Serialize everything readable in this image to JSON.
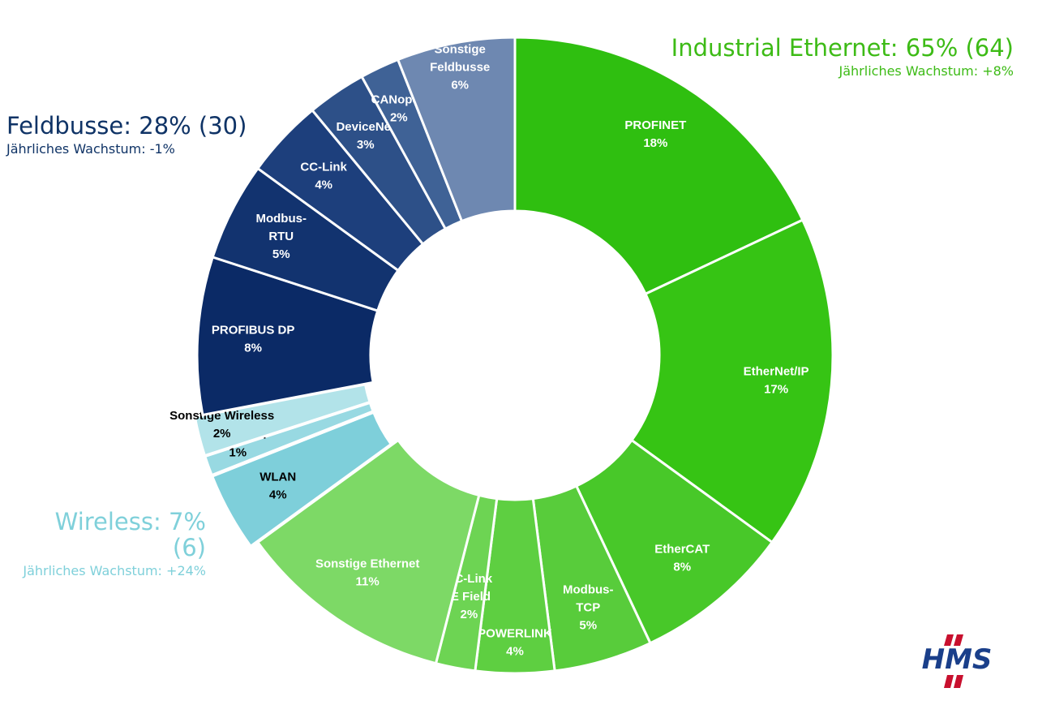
{
  "groups": {
    "industrial_ethernet": {
      "title": "Industrial Ethernet: 65% (64)",
      "growth": "Jährliches Wachstum: +8%",
      "color": "#3dbb16"
    },
    "feldbusse": {
      "title": "Feldbusse: 28% (30)",
      "growth": "Jährliches Wachstum: -1%",
      "color": "#0f3366"
    },
    "wireless": {
      "title": "Wireless: 7% (6)",
      "growth": "Jährliches Wachstum: +24%",
      "color": "#7fd0da"
    }
  },
  "logo": {
    "text": "HMS",
    "color": "#1a3f8a",
    "accent": "#c8102e"
  },
  "chart_data": {
    "type": "pie",
    "variant": "donut",
    "title": "",
    "direction": "clockwise from top",
    "slices": [
      {
        "label": "PROFINET",
        "value": 18,
        "display": "18%",
        "group": "Industrial Ethernet",
        "color": "#2fbf10",
        "text_color": "#ffffff"
      },
      {
        "label": "EtherNet/IP",
        "value": 17,
        "display": "17%",
        "group": "Industrial Ethernet",
        "color": "#36c414",
        "text_color": "#ffffff"
      },
      {
        "label": "EtherCAT",
        "value": 8,
        "display": "8%",
        "group": "Industrial Ethernet",
        "color": "#48c829",
        "text_color": "#ffffff"
      },
      {
        "label": "Modbus-TCP",
        "value": 5,
        "display": "5%",
        "group": "Industrial Ethernet",
        "color": "#58cc3b",
        "text_color": "#ffffff"
      },
      {
        "label": "POWERLINK",
        "value": 4,
        "display": "4%",
        "group": "Industrial Ethernet",
        "color": "#5ecf41",
        "text_color": "#ffffff"
      },
      {
        "label": "CC-Link IE Field",
        "value": 2,
        "display": "2%",
        "group": "Industrial Ethernet",
        "color": "#6dd453",
        "text_color": "#ffffff"
      },
      {
        "label": "Sonstige Ethernet",
        "value": 11,
        "display": "11%",
        "group": "Industrial Ethernet",
        "color": "#7dd966",
        "text_color": "#ffffff"
      },
      {
        "label": "WLAN",
        "value": 4,
        "display": "4%",
        "group": "Wireless",
        "color": "#7ecfda",
        "text_color": "#000000"
      },
      {
        "label": "Bluetooth",
        "value": 1,
        "display": "1%",
        "group": "Wireless",
        "color": "#98d9e2",
        "text_color": "#000000"
      },
      {
        "label": "Sonstige Wireless",
        "value": 2,
        "display": "2%",
        "group": "Wireless",
        "color": "#b2e3e9",
        "text_color": "#000000"
      },
      {
        "label": "PROFIBUS DP",
        "value": 8,
        "display": "8%",
        "group": "Feldbusse",
        "color": "#0b2a66",
        "text_color": "#ffffff"
      },
      {
        "label": "Modbus-RTU",
        "value": 5,
        "display": "5%",
        "group": "Feldbusse",
        "color": "#12336f",
        "text_color": "#ffffff"
      },
      {
        "label": "CC-Link",
        "value": 4,
        "display": "4%",
        "group": "Feldbusse",
        "color": "#1d3f7c",
        "text_color": "#ffffff"
      },
      {
        "label": "DeviceNet",
        "value": 3,
        "display": "3%",
        "group": "Feldbusse",
        "color": "#2d5088",
        "text_color": "#ffffff"
      },
      {
        "label": "CANopen",
        "value": 2,
        "display": "2%",
        "group": "Feldbusse",
        "color": "#3f6296",
        "text_color": "#ffffff"
      },
      {
        "label": "Sonstige Feldbusse",
        "value": 6,
        "display": "6%",
        "group": "Feldbusse",
        "color": "#6e88b1",
        "text_color": "#ffffff"
      }
    ]
  }
}
